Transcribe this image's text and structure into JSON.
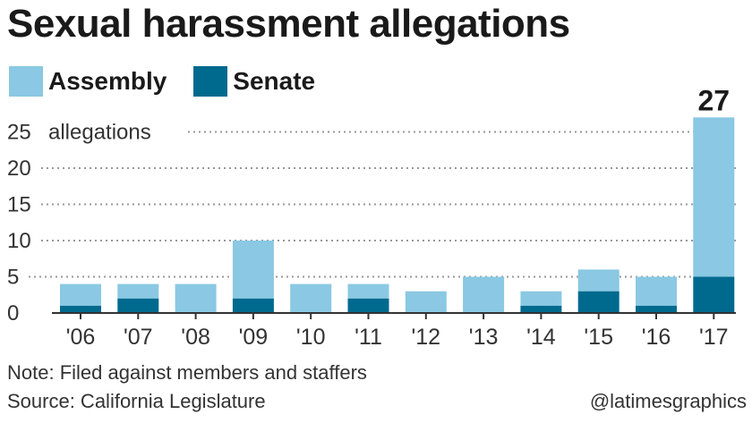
{
  "header": {
    "title": "Sexual harassment allegations"
  },
  "legend": [
    {
      "label": "Assembly",
      "color": "#8ac8e3"
    },
    {
      "label": "Senate",
      "color": "#006a8e"
    }
  ],
  "chart_data": {
    "type": "bar",
    "stacked": true,
    "categories": [
      "'06",
      "'07",
      "'08",
      "'09",
      "'10",
      "'11",
      "'12",
      "'13",
      "'14",
      "'15",
      "'16",
      "'17"
    ],
    "series": [
      {
        "name": "Senate",
        "color": "#006a8e",
        "values": [
          1,
          2,
          0,
          2,
          0,
          2,
          0,
          0,
          1,
          3,
          1,
          5
        ]
      },
      {
        "name": "Assembly",
        "color": "#8ac8e3",
        "values": [
          3,
          2,
          4,
          8,
          4,
          2,
          3,
          5,
          2,
          3,
          4,
          22
        ]
      }
    ],
    "y_ticks": [
      "0",
      "5",
      "10",
      "15",
      "20",
      "25"
    ],
    "y_tick_values": [
      0,
      5,
      10,
      15,
      20,
      25
    ],
    "y_unit_label": "allegations",
    "ylim": [
      0,
      27
    ],
    "grid": true,
    "annotations": [
      {
        "category": "'17",
        "text": "27"
      }
    ]
  },
  "footer": {
    "note": "Note: Filed against members and staffers",
    "source": "Source: California Legislature",
    "credit": "@latimesgraphics"
  }
}
